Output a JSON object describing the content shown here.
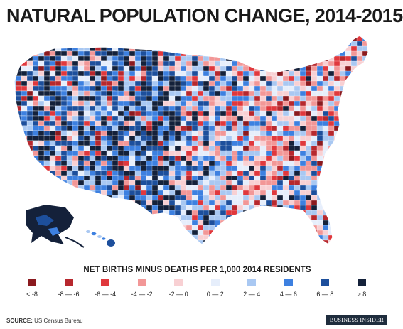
{
  "title": "NATURAL POPULATION CHANGE, 2014-2015",
  "legend": {
    "title": "NET BIRTHS MINUS DEATHS PER 1,000 2014 RESIDENTS",
    "items": [
      {
        "label": "< -8",
        "color": "#8b1a1f"
      },
      {
        "label": "-8 — -6",
        "color": "#b7282e"
      },
      {
        "label": "-6 — -4",
        "color": "#e0383d"
      },
      {
        "label": "-4 — -2",
        "color": "#f29797"
      },
      {
        "label": "-2 — 0",
        "color": "#f8d0d3"
      },
      {
        "label": "0 — 2",
        "color": "#e6eefb"
      },
      {
        "label": "2 — 4",
        "color": "#a9c8f2"
      },
      {
        "label": "4 — 6",
        "color": "#3d80e0"
      },
      {
        "label": "6 — 8",
        "color": "#1d4f9c"
      },
      {
        "label": "> 8",
        "color": "#14213a"
      }
    ]
  },
  "source": {
    "prefix": "SOURCE:",
    "text": "US Census Bureau"
  },
  "brand": "BUSINESS INSIDER"
}
